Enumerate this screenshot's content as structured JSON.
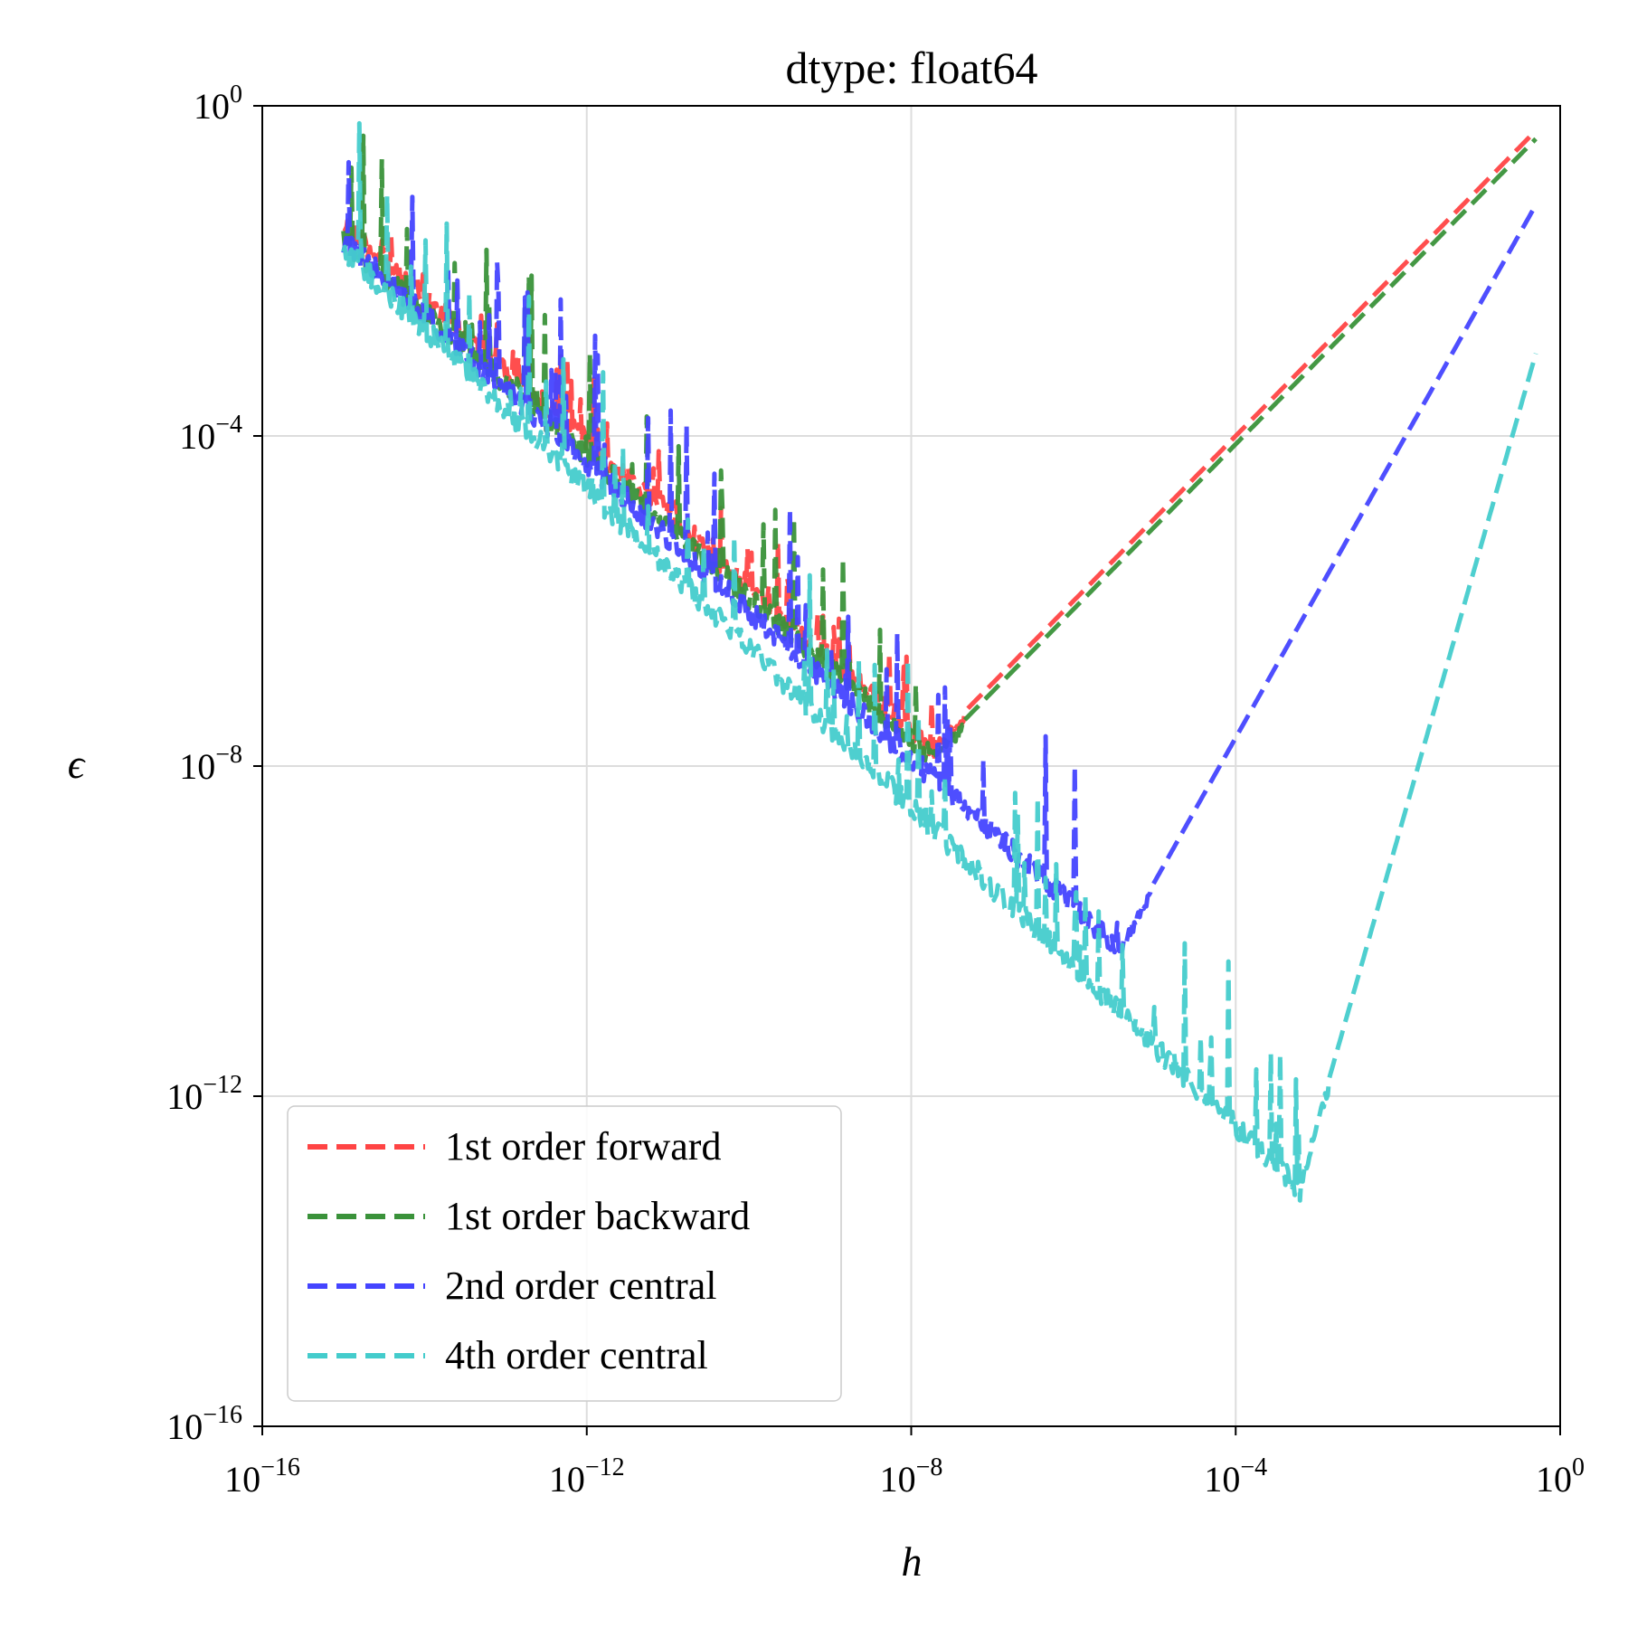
{
  "chart_data": {
    "type": "line",
    "title": "dtype: float64",
    "xlabel": "h",
    "ylabel": "ϵ",
    "xscale": "log",
    "yscale": "log",
    "xlim_exp": [
      -16,
      0
    ],
    "ylim_exp": [
      -16,
      0
    ],
    "grid": true,
    "legend_position": "lower-left",
    "x_ticks": [
      {
        "base": "10",
        "exp": "−16",
        "value": -16
      },
      {
        "base": "10",
        "exp": "−12",
        "value": -12
      },
      {
        "base": "10",
        "exp": "−8",
        "value": -8
      },
      {
        "base": "10",
        "exp": "−4",
        "value": -4
      },
      {
        "base": "10",
        "exp": "0",
        "value": 0
      }
    ],
    "y_ticks": [
      {
        "base": "10",
        "exp": "0",
        "value": 0
      },
      {
        "base": "10",
        "exp": "−4",
        "value": -4
      },
      {
        "base": "10",
        "exp": "−8",
        "value": -8
      },
      {
        "base": "10",
        "exp": "−12",
        "value": -12
      },
      {
        "base": "10",
        "exp": "−16",
        "value": -16
      }
    ],
    "series": [
      {
        "name": "1st order forward",
        "color": "#ff4444",
        "h_range_log10": [
          -15,
          -0.3
        ],
        "optimum_log10": [
          -7.7,
          -7.7
        ],
        "end_log10": [
          -0.3,
          -0.3
        ],
        "noise_base_log10": [
          -15,
          -1.3
        ],
        "dip_depth": 0.8
      },
      {
        "name": "1st order backward",
        "color": "#3a923a",
        "h_range_log10": [
          -15,
          -0.3
        ],
        "optimum_log10": [
          -7.7,
          -7.8
        ],
        "end_log10": [
          -0.3,
          -0.4
        ],
        "noise_base_log10": [
          -15,
          -1.5
        ],
        "dip_depth": 1.6
      },
      {
        "name": "2nd order central",
        "color": "#4444ff",
        "h_range_log10": [
          -15,
          -0.3
        ],
        "optimum_log10": [
          -5.4,
          -10.1
        ],
        "end_log10": [
          -0.3,
          -1.2
        ],
        "noise_base_log10": [
          -15,
          -1.5
        ],
        "dip_depth": 1.8
      },
      {
        "name": "4th order central",
        "color": "#44cccc",
        "h_range_log10": [
          -15,
          -0.3
        ],
        "optimum_log10": [
          -3.2,
          -13.0
        ],
        "end_log10": [
          -0.3,
          -3.0
        ],
        "noise_base_log10": [
          -15,
          -1.6
        ],
        "dip_depth": 1.8
      }
    ]
  }
}
